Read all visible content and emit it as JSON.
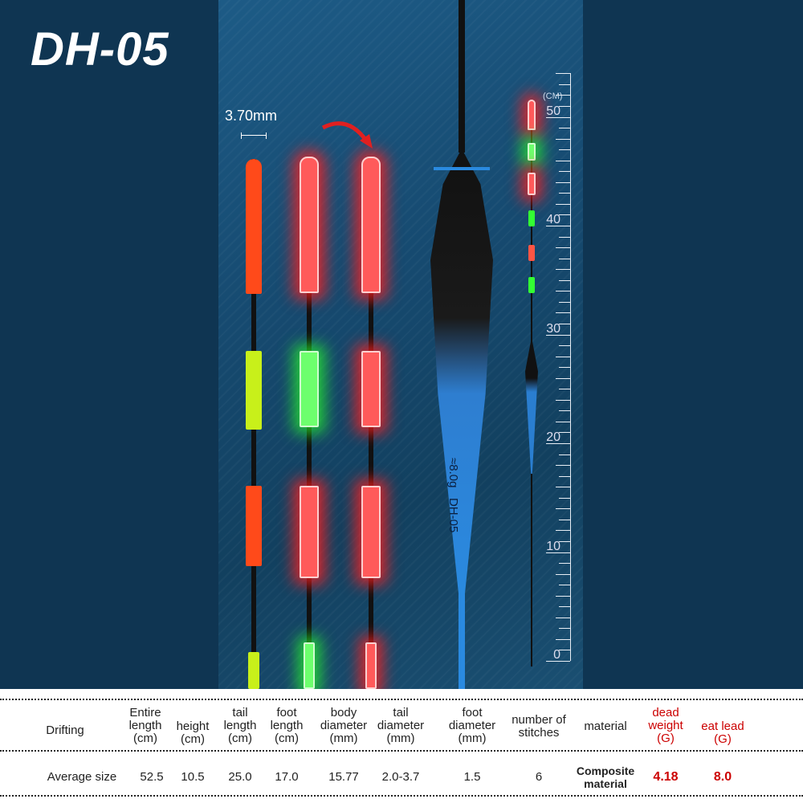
{
  "model": "DH-05",
  "tail_diameter_label": "3.70mm",
  "float_print": {
    "weight": "≈8.0g",
    "model": "DH-05"
  },
  "ruler": {
    "unit": "(CM)",
    "labels": [
      "0",
      "10",
      "20",
      "30",
      "40",
      "50"
    ]
  },
  "colors": {
    "background": "#0f3552",
    "panel": "#1d5b86",
    "glow_red": "#ff3a3a",
    "glow_green": "#4dff4d",
    "highlight_text": "#cc0000"
  },
  "table": {
    "header": {
      "row_label": "Drifting",
      "columns": [
        {
          "label": "Entire length",
          "unit": "(cm)"
        },
        {
          "label": "height",
          "unit": "(cm)"
        },
        {
          "label": "tail length",
          "unit": "(cm)"
        },
        {
          "label": "foot length",
          "unit": "(cm)"
        },
        {
          "label": "body diameter",
          "unit": "(mm)"
        },
        {
          "label": "tail diameter",
          "unit": "(mm)"
        },
        {
          "label": "foot diameter",
          "unit": "(mm)"
        },
        {
          "label": "number of stitches",
          "unit": ""
        },
        {
          "label": "material",
          "unit": ""
        },
        {
          "label": "dead weight",
          "unit": "(G)"
        },
        {
          "label": "eat lead",
          "unit": "(G)"
        }
      ]
    },
    "row": {
      "label": "Average size",
      "values": [
        "52.5",
        "10.5",
        "25.0",
        "17.0",
        "15.77",
        "2.0-3.7",
        "1.5",
        "6",
        "Composite material",
        "4.18",
        "8.0"
      ]
    }
  }
}
